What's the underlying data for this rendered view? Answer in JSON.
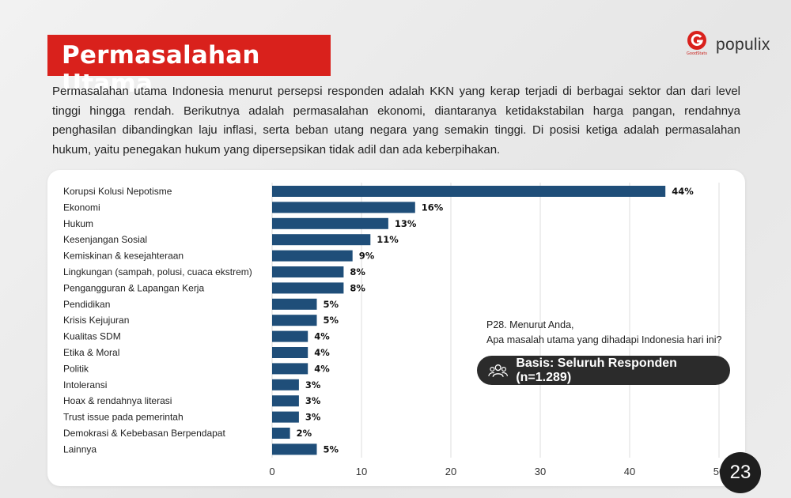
{
  "header": {
    "title": "Permasalahan Utama",
    "brand": "populix",
    "brand_sub": "GoodStats"
  },
  "intro": "Permasalahan utama Indonesia menurut persepsi responden adalah KKN yang kerap terjadi di berbagai sektor dan dari level tinggi hingga rendah. Berikutnya adalah permasalahan ekonomi, diantaranya ketidakstabilan harga pangan, rendahnya penghasilan dibandingkan laju inflasi, serta beban utang negara yang semakin tinggi. Di posisi ketiga adalah permasalahan hukum, yaitu penegakan hukum yang dipersepsikan tidak adil dan ada keberpihakan.",
  "question": {
    "line1": "P28. Menurut Anda,",
    "line2": "Apa masalah utama yang dihadapi Indonesia hari ini?"
  },
  "basis": "Basis: Seluruh Responden (n=1.289)",
  "page_number": "23",
  "colors": {
    "bar": "#1f4e79",
    "title_bg": "#d9211c",
    "pill_bg": "#2b2b2b"
  },
  "chart_data": {
    "type": "bar",
    "orientation": "horizontal",
    "categories": [
      "Korupsi Kolusi Nepotisme",
      "Ekonomi",
      "Hukum",
      "Kesenjangan Sosial",
      "Kemiskinan & kesejahteraan",
      "Lingkungan (sampah, polusi, cuaca ekstrem)",
      "Pengangguran & Lapangan Kerja",
      "Pendidikan",
      "Krisis Kejujuran",
      "Kualitas SDM",
      "Etika & Moral",
      "Politik",
      "Intoleransi",
      "Hoax & rendahnya literasi",
      "Trust issue pada pemerintah",
      "Demokrasi & Kebebasan Berpendapat",
      "Lainnya"
    ],
    "values": [
      44,
      16,
      13,
      11,
      9,
      8,
      8,
      5,
      5,
      4,
      4,
      4,
      3,
      3,
      3,
      2,
      5
    ],
    "data_labels": [
      "44%",
      "16%",
      "13%",
      "11%",
      "9%",
      "8%",
      "8%",
      "5%",
      "5%",
      "4%",
      "4%",
      "4%",
      "3%",
      "3%",
      "3%",
      "2%",
      "5%"
    ],
    "x_ticks": [
      0,
      10,
      20,
      30,
      40,
      50
    ],
    "xlim": [
      0,
      50
    ],
    "grid": true,
    "title": "",
    "xlabel": "",
    "ylabel": ""
  }
}
